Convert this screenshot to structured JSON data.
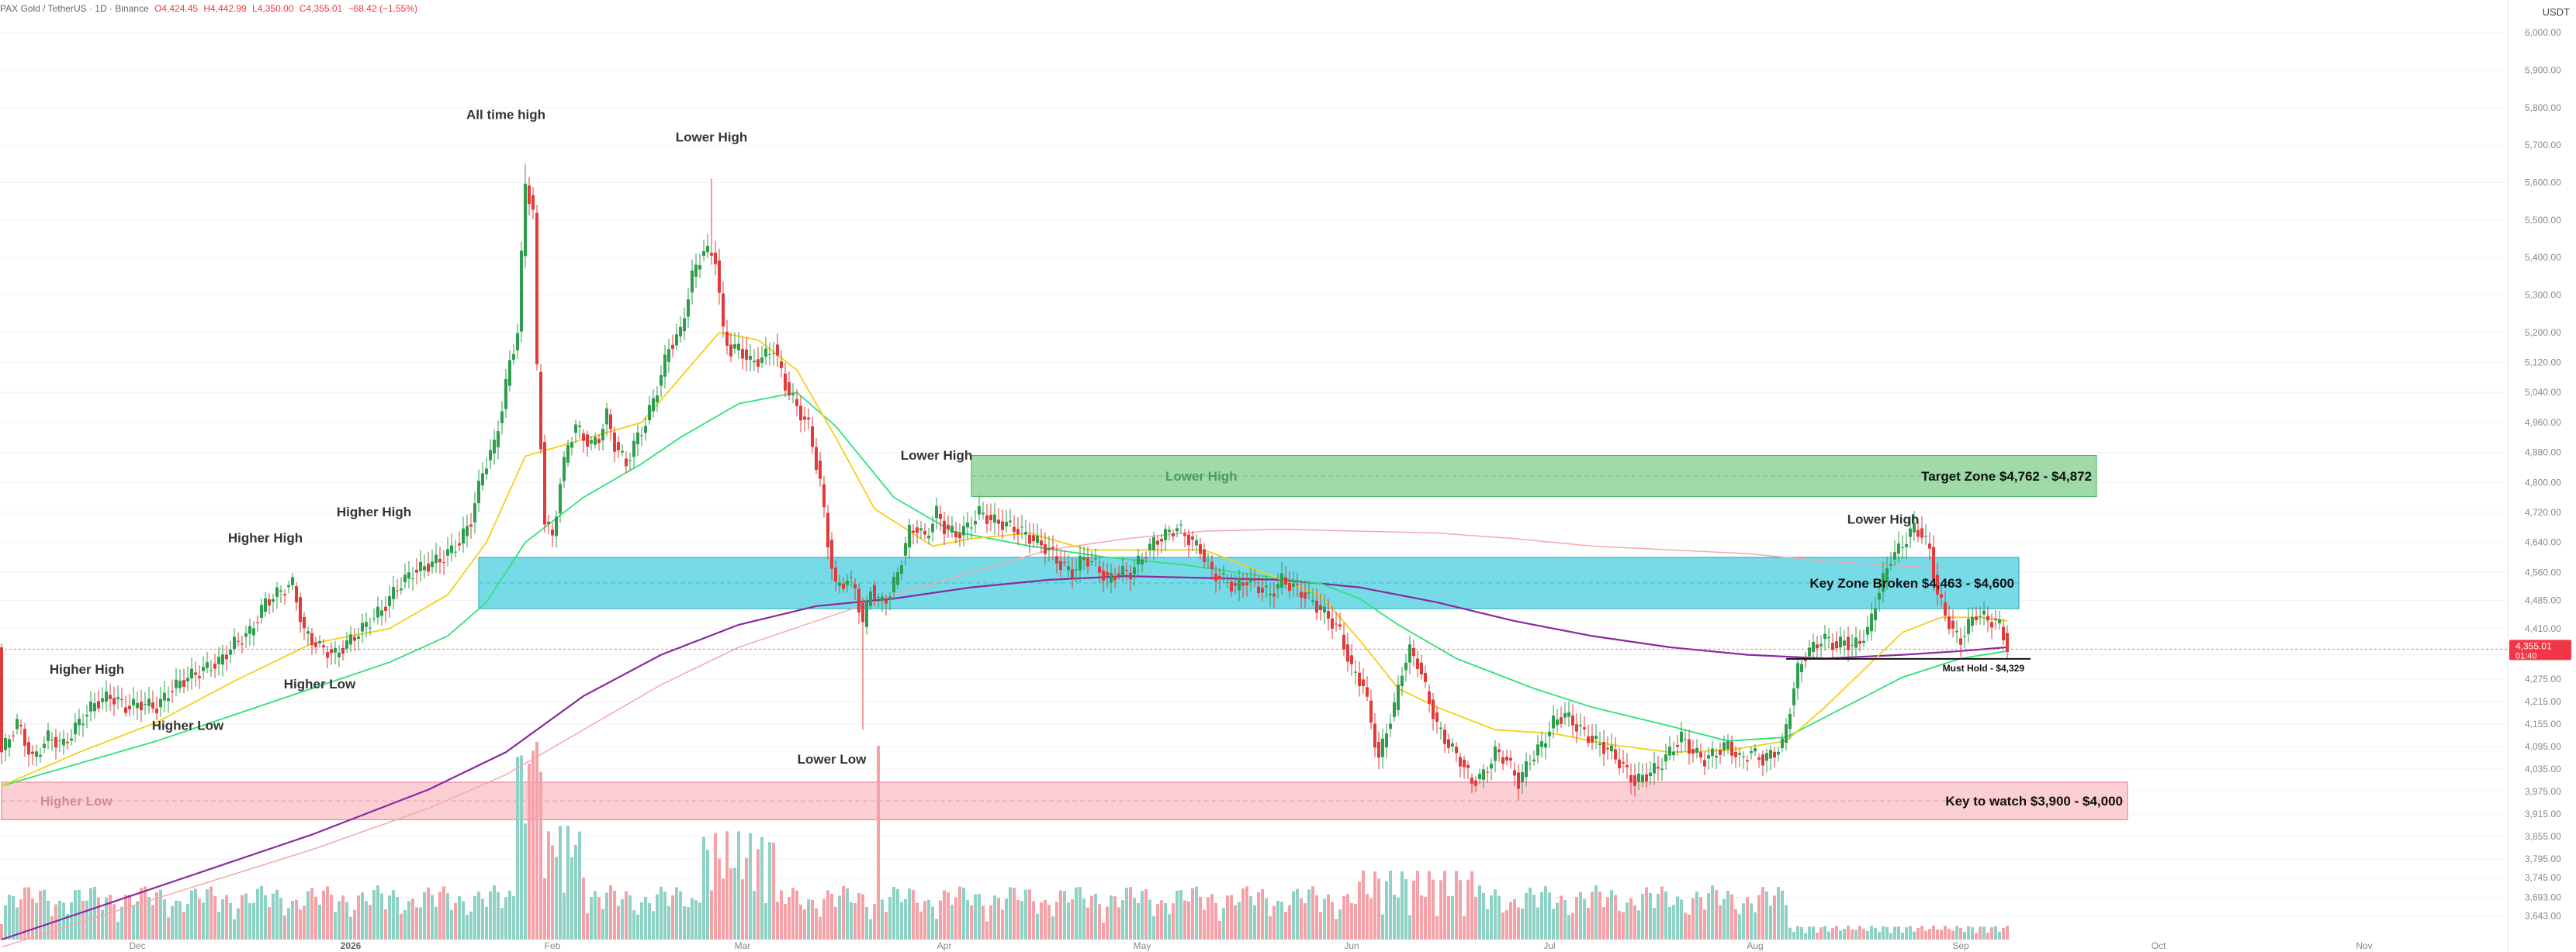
{
  "header": {
    "symbol": "PAX Gold / TetherUS · 1D · Binance",
    "open": "O4,424.45",
    "high": "H4,442.99",
    "low": "L4,350.00",
    "close": "C4,355.01",
    "change": "−68.42 (−1.55%)"
  },
  "currency": "USDT",
  "price_tag": {
    "price": "4,355.01",
    "countdown": "01:40"
  },
  "colors": {
    "up": "#2e9e4e",
    "down": "#e03a3a",
    "ema_fast": "#f5cf1a",
    "ema_mid": "#2ee27a",
    "ema_slow": "#8a2a9e",
    "ema_slowest": "#f2a9b4",
    "target_zone": "#8fd39a",
    "key_zone": "#5fd3e3",
    "watch_zone": "#fbc7ce",
    "vol_up": "#8fd1c4",
    "vol_down": "#f4a2a8"
  },
  "chart_data": {
    "type": "candlestick",
    "y_axis": {
      "range": [
        3580,
        6050
      ],
      "ticks": [
        "6,000.00",
        "5,900.00",
        "5,800.00",
        "5,700.00",
        "5,600.00",
        "5,500.00",
        "5,400.00",
        "5,300.00",
        "5,200.00",
        "5,120.00",
        "5,040.00",
        "4,960.00",
        "4,880.00",
        "4,800.00",
        "4,720.00",
        "4,640.00",
        "4,560.00",
        "4,485.00",
        "4,410.00",
        "4,340.00",
        "4,275.00",
        "4,215.00",
        "4,155.00",
        "4,095.00",
        "4,035.00",
        "3,975.00",
        "3,915.00",
        "3,855.00",
        "3,795.00",
        "3,745.00",
        "3,693.00",
        "3,643.00"
      ]
    },
    "x_axis": {
      "months": [
        "Dec",
        "2026",
        "Feb",
        "Mar",
        "Apr",
        "May",
        "Jun",
        "Jul",
        "Aug",
        "Sep",
        "Oct",
        "Nov"
      ]
    },
    "waypoints": [
      [
        0,
        4080
      ],
      [
        4,
        4160
      ],
      [
        8,
        4060
      ],
      [
        12,
        4120
      ],
      [
        16,
        4100
      ],
      [
        20,
        4160
      ],
      [
        24,
        4210
      ],
      [
        28,
        4230
      ],
      [
        32,
        4200
      ],
      [
        36,
        4210
      ],
      [
        40,
        4200
      ],
      [
        44,
        4250
      ],
      [
        48,
        4280
      ],
      [
        52,
        4300
      ],
      [
        56,
        4320
      ],
      [
        60,
        4370
      ],
      [
        64,
        4400
      ],
      [
        68,
        4480
      ],
      [
        72,
        4510
      ],
      [
        75,
        4530
      ],
      [
        78,
        4400
      ],
      [
        82,
        4360
      ],
      [
        86,
        4340
      ],
      [
        90,
        4380
      ],
      [
        94,
        4420
      ],
      [
        98,
        4460
      ],
      [
        102,
        4520
      ],
      [
        106,
        4560
      ],
      [
        110,
        4580
      ],
      [
        114,
        4600
      ],
      [
        118,
        4640
      ],
      [
        121,
        4700
      ],
      [
        124,
        4830
      ],
      [
        127,
        4900
      ],
      [
        129,
        5000
      ],
      [
        131,
        5120
      ],
      [
        133,
        5200
      ],
      [
        135,
        5600
      ],
      [
        137,
        5520
      ],
      [
        138,
        5100
      ],
      [
        140,
        4700
      ],
      [
        142,
        4650
      ],
      [
        144,
        4800
      ],
      [
        146,
        4900
      ],
      [
        148,
        4950
      ],
      [
        150,
        4920
      ],
      [
        152,
        4900
      ],
      [
        154,
        4920
      ],
      [
        156,
        4980
      ],
      [
        158,
        4900
      ],
      [
        161,
        4850
      ],
      [
        163,
        4900
      ],
      [
        166,
        4960
      ],
      [
        169,
        5050
      ],
      [
        172,
        5160
      ],
      [
        175,
        5200
      ],
      [
        178,
        5350
      ],
      [
        181,
        5420
      ],
      [
        184,
        5400
      ],
      [
        186,
        5200
      ],
      [
        188,
        5150
      ],
      [
        190,
        5160
      ],
      [
        193,
        5120
      ],
      [
        196,
        5130
      ],
      [
        199,
        5160
      ],
      [
        202,
        5060
      ],
      [
        205,
        5000
      ],
      [
        208,
        4950
      ],
      [
        211,
        4800
      ],
      [
        213,
        4640
      ],
      [
        215,
        4520
      ],
      [
        218,
        4540
      ],
      [
        220,
        4520
      ],
      [
        222,
        4420
      ],
      [
        224,
        4520
      ],
      [
        226,
        4480
      ],
      [
        229,
        4500
      ],
      [
        231,
        4560
      ],
      [
        234,
        4670
      ],
      [
        236,
        4680
      ],
      [
        238,
        4650
      ],
      [
        241,
        4720
      ],
      [
        243,
        4680
      ],
      [
        246,
        4660
      ],
      [
        249,
        4680
      ],
      [
        252,
        4720
      ],
      [
        255,
        4700
      ],
      [
        258,
        4690
      ],
      [
        261,
        4680
      ],
      [
        264,
        4660
      ],
      [
        267,
        4640
      ],
      [
        270,
        4620
      ],
      [
        273,
        4580
      ],
      [
        276,
        4560
      ],
      [
        279,
        4600
      ],
      [
        282,
        4580
      ],
      [
        285,
        4540
      ],
      [
        288,
        4560
      ],
      [
        291,
        4560
      ],
      [
        294,
        4600
      ],
      [
        297,
        4640
      ],
      [
        300,
        4660
      ],
      [
        303,
        4680
      ],
      [
        306,
        4650
      ],
      [
        309,
        4620
      ],
      [
        312,
        4560
      ],
      [
        315,
        4540
      ],
      [
        318,
        4520
      ],
      [
        321,
        4540
      ],
      [
        324,
        4520
      ],
      [
        327,
        4500
      ],
      [
        330,
        4540
      ],
      [
        333,
        4520
      ],
      [
        336,
        4500
      ],
      [
        339,
        4470
      ],
      [
        342,
        4440
      ],
      [
        345,
        4400
      ],
      [
        348,
        4300
      ],
      [
        351,
        4260
      ],
      [
        353,
        4160
      ],
      [
        355,
        4060
      ],
      [
        357,
        4140
      ],
      [
        359,
        4200
      ],
      [
        361,
        4300
      ],
      [
        363,
        4350
      ],
      [
        365,
        4320
      ],
      [
        367,
        4250
      ],
      [
        370,
        4150
      ],
      [
        373,
        4100
      ],
      [
        376,
        4060
      ],
      [
        379,
        4000
      ],
      [
        382,
        4020
      ],
      [
        385,
        4080
      ],
      [
        388,
        4060
      ],
      [
        391,
        4000
      ],
      [
        394,
        4060
      ],
      [
        397,
        4100
      ],
      [
        400,
        4160
      ],
      [
        403,
        4180
      ],
      [
        406,
        4150
      ],
      [
        409,
        4120
      ],
      [
        412,
        4100
      ],
      [
        415,
        4080
      ],
      [
        418,
        4040
      ],
      [
        421,
        4000
      ],
      [
        424,
        4020
      ],
      [
        427,
        4040
      ],
      [
        430,
        4080
      ],
      [
        433,
        4120
      ],
      [
        436,
        4080
      ],
      [
        439,
        4060
      ],
      [
        442,
        4080
      ],
      [
        445,
        4100
      ],
      [
        448,
        4060
      ],
      [
        451,
        4080
      ],
      [
        454,
        4060
      ],
      [
        457,
        4080
      ],
      [
        459,
        4100
      ],
      [
        461,
        4200
      ],
      [
        463,
        4300
      ],
      [
        465,
        4340
      ],
      [
        467,
        4360
      ],
      [
        469,
        4380
      ],
      [
        471,
        4380
      ],
      [
        473,
        4360
      ],
      [
        475,
        4380
      ],
      [
        477,
        4360
      ],
      [
        479,
        4380
      ],
      [
        481,
        4400
      ],
      [
        483,
        4480
      ],
      [
        485,
        4540
      ],
      [
        487,
        4600
      ],
      [
        489,
        4620
      ],
      [
        491,
        4650
      ],
      [
        493,
        4680
      ],
      [
        495,
        4660
      ],
      [
        497,
        4620
      ],
      [
        499,
        4500
      ],
      [
        501,
        4450
      ],
      [
        503,
        4400
      ],
      [
        505,
        4380
      ],
      [
        507,
        4420
      ],
      [
        509,
        4450
      ],
      [
        511,
        4440
      ],
      [
        513,
        4430
      ],
      [
        515,
        4420
      ],
      [
        517,
        4360
      ]
    ],
    "ema_fast": [
      [
        0,
        3990
      ],
      [
        20,
        4080
      ],
      [
        40,
        4160
      ],
      [
        60,
        4270
      ],
      [
        80,
        4370
      ],
      [
        100,
        4410
      ],
      [
        115,
        4500
      ],
      [
        125,
        4640
      ],
      [
        135,
        4870
      ],
      [
        145,
        4900
      ],
      [
        155,
        4930
      ],
      [
        165,
        4960
      ],
      [
        175,
        5080
      ],
      [
        185,
        5200
      ],
      [
        195,
        5180
      ],
      [
        205,
        5100
      ],
      [
        215,
        4920
      ],
      [
        225,
        4730
      ],
      [
        240,
        4630
      ],
      [
        250,
        4650
      ],
      [
        265,
        4665
      ],
      [
        280,
        4620
      ],
      [
        295,
        4620
      ],
      [
        310,
        4620
      ],
      [
        325,
        4560
      ],
      [
        340,
        4500
      ],
      [
        350,
        4380
      ],
      [
        360,
        4250
      ],
      [
        370,
        4200
      ],
      [
        385,
        4140
      ],
      [
        400,
        4130
      ],
      [
        415,
        4100
      ],
      [
        430,
        4080
      ],
      [
        445,
        4085
      ],
      [
        460,
        4110
      ],
      [
        470,
        4200
      ],
      [
        480,
        4300
      ],
      [
        490,
        4400
      ],
      [
        500,
        4440
      ],
      [
        510,
        4440
      ],
      [
        517,
        4430
      ]
    ],
    "ema_mid": [
      [
        0,
        3990
      ],
      [
        20,
        4050
      ],
      [
        40,
        4110
      ],
      [
        60,
        4180
      ],
      [
        80,
        4250
      ],
      [
        100,
        4320
      ],
      [
        115,
        4390
      ],
      [
        125,
        4480
      ],
      [
        135,
        4640
      ],
      [
        150,
        4760
      ],
      [
        165,
        4850
      ],
      [
        175,
        4920
      ],
      [
        190,
        5010
      ],
      [
        205,
        5040
      ],
      [
        215,
        4950
      ],
      [
        230,
        4760
      ],
      [
        245,
        4670
      ],
      [
        265,
        4630
      ],
      [
        285,
        4600
      ],
      [
        305,
        4580
      ],
      [
        325,
        4550
      ],
      [
        340,
        4530
      ],
      [
        350,
        4490
      ],
      [
        360,
        4420
      ],
      [
        375,
        4330
      ],
      [
        395,
        4250
      ],
      [
        410,
        4200
      ],
      [
        430,
        4150
      ],
      [
        445,
        4110
      ],
      [
        460,
        4120
      ],
      [
        475,
        4200
      ],
      [
        490,
        4280
      ],
      [
        505,
        4330
      ],
      [
        517,
        4350
      ]
    ],
    "ema_slow": [
      [
        0,
        3580
      ],
      [
        40,
        3720
      ],
      [
        80,
        3860
      ],
      [
        110,
        3980
      ],
      [
        130,
        4080
      ],
      [
        150,
        4230
      ],
      [
        170,
        4340
      ],
      [
        190,
        4420
      ],
      [
        210,
        4470
      ],
      [
        230,
        4490
      ],
      [
        250,
        4520
      ],
      [
        270,
        4540
      ],
      [
        290,
        4550
      ],
      [
        310,
        4545
      ],
      [
        330,
        4540
      ],
      [
        350,
        4520
      ],
      [
        370,
        4480
      ],
      [
        390,
        4430
      ],
      [
        410,
        4390
      ],
      [
        430,
        4360
      ],
      [
        450,
        4340
      ],
      [
        470,
        4330
      ],
      [
        490,
        4340
      ],
      [
        505,
        4350
      ],
      [
        517,
        4360
      ]
    ],
    "ema_slowest": [
      [
        0,
        3560
      ],
      [
        40,
        3690
      ],
      [
        80,
        3820
      ],
      [
        110,
        3930
      ],
      [
        130,
        4020
      ],
      [
        150,
        4140
      ],
      [
        170,
        4260
      ],
      [
        190,
        4360
      ],
      [
        210,
        4430
      ],
      [
        230,
        4500
      ],
      [
        250,
        4560
      ],
      [
        270,
        4620
      ],
      [
        290,
        4650
      ],
      [
        310,
        4670
      ],
      [
        330,
        4675
      ],
      [
        350,
        4670
      ],
      [
        370,
        4665
      ],
      [
        390,
        4650
      ],
      [
        410,
        4630
      ],
      [
        430,
        4620
      ],
      [
        450,
        4610
      ],
      [
        470,
        4590
      ],
      [
        485,
        4580
      ],
      [
        500,
        4570
      ]
    ],
    "zones": [
      {
        "name": "target",
        "label": "Target Zone $4,762 - $4,872",
        "inner_label": "Lower High",
        "from_bar": 250,
        "to_bar": 540,
        "low": 4762,
        "high": 4872
      },
      {
        "name": "key",
        "label": "Key Zone Broken $4,463 - $4,600",
        "from_bar": 123,
        "to_bar": 520,
        "low": 4463,
        "high": 4600
      },
      {
        "name": "watch",
        "label": "Key to watch $3,900 - $4,000",
        "inner_label": "Higher Low",
        "from_bar": 0,
        "to_bar": 548,
        "low": 3900,
        "high": 4000
      }
    ],
    "must_hold": {
      "label": "Must Hold - $4,329",
      "price": 4329,
      "from_bar": 460,
      "to_bar": 523
    },
    "annotations": [
      {
        "text": "All time high",
        "bar": 130,
        "price": 5770
      },
      {
        "text": "Lower High",
        "bar": 183,
        "price": 5710
      },
      {
        "text": "Lower High",
        "bar": 241,
        "price": 4860
      },
      {
        "text": "Lower High",
        "bar": 485,
        "price": 4690
      },
      {
        "text": "Higher High",
        "bar": 68,
        "price": 4640
      },
      {
        "text": "Higher High",
        "bar": 96,
        "price": 4710
      },
      {
        "text": "Higher High",
        "bar": 22,
        "price": 4290
      },
      {
        "text": "Higher Low",
        "bar": 48,
        "price": 4140
      },
      {
        "text": "Higher Low",
        "bar": 82,
        "price": 4250
      },
      {
        "text": "Lower Low",
        "bar": 214,
        "price": 4050
      }
    ]
  }
}
